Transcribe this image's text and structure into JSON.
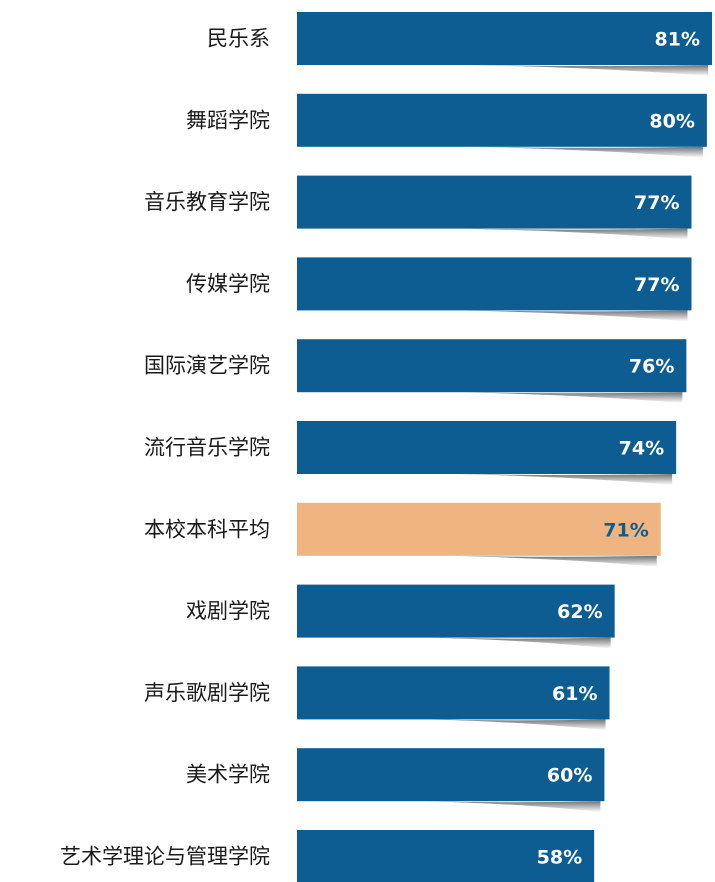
{
  "chart_data": {
    "type": "bar",
    "orientation": "horizontal",
    "categories": [
      "民乐系",
      "舞蹈学院",
      "音乐教育学院",
      "传媒学院",
      "国际演艺学院",
      "流行音乐学院",
      "本校本科平均",
      "戏剧学院",
      "声乐歌剧学院",
      "美术学院",
      "艺术学理论与管理学院"
    ],
    "values": [
      81,
      80,
      77,
      77,
      76,
      74,
      71,
      62,
      61,
      60,
      58
    ],
    "value_labels": [
      "81%",
      "80%",
      "77%",
      "77%",
      "76%",
      "74%",
      "71%",
      "62%",
      "61%",
      "60%",
      "58%"
    ],
    "unit": "%",
    "highlight_index": 6,
    "colors": {
      "bar": "#0d5d92",
      "highlight_bar": "#efb47f",
      "value_text": "#ffffff",
      "highlight_value_text": "#0d5d92",
      "label_text": "#1a1a1a"
    },
    "title": "",
    "xlabel": "",
    "ylabel": "",
    "xlim": [
      0,
      81
    ],
    "grid": false,
    "legend": "none"
  }
}
